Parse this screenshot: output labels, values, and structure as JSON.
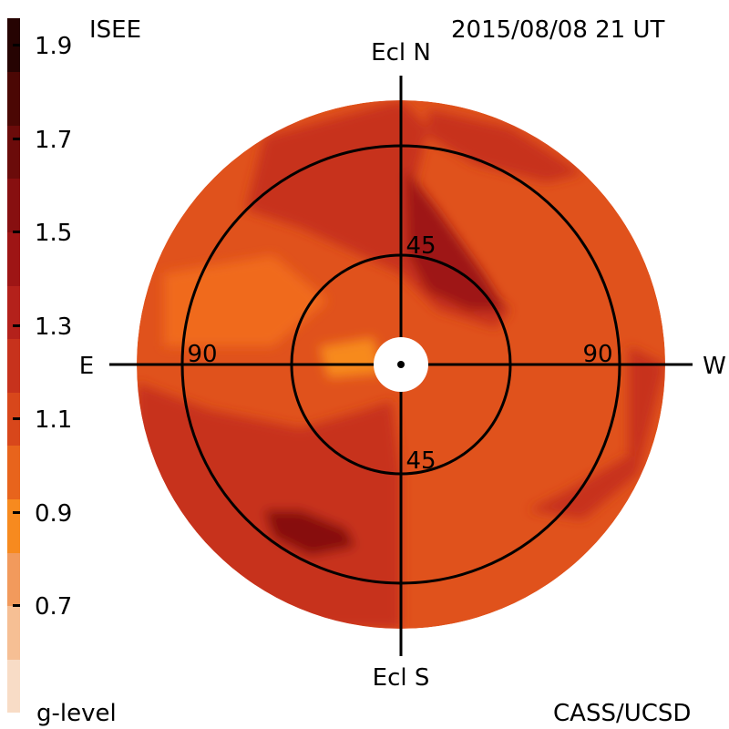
{
  "header": {
    "source_label": "ISEE",
    "timestamp": "2015/08/08 21 UT"
  },
  "footer": {
    "legend_title": "g-level",
    "credit": "CASS/UCSD"
  },
  "colorbar": {
    "tick_labels": [
      "1.9",
      "1.7",
      "1.5",
      "1.3",
      "1.1",
      "0.9",
      "0.7"
    ],
    "colors": [
      "#f8dcc6",
      "#f6bf94",
      "#f29a5c",
      "#f78a1f",
      "#e8641c",
      "#d8471b",
      "#c7321c",
      "#b4211b",
      "#9e1515",
      "#870f10",
      "#6b0b0a",
      "#4b0704",
      "#260302"
    ]
  },
  "map": {
    "direction_labels": {
      "north": "Ecl N",
      "south": "Ecl S",
      "east": "E",
      "west": "W"
    },
    "ring_labels": {
      "inner_top": "45",
      "inner_bottom": "45",
      "outer_left": "90",
      "outer_right": "90"
    },
    "colors": {
      "base": "#e0521c",
      "mid": "#c7321c",
      "dark": "#9e1515",
      "darkest": "#870f10",
      "light": "#f06a1a",
      "bright": "#f78a1f"
    }
  }
}
